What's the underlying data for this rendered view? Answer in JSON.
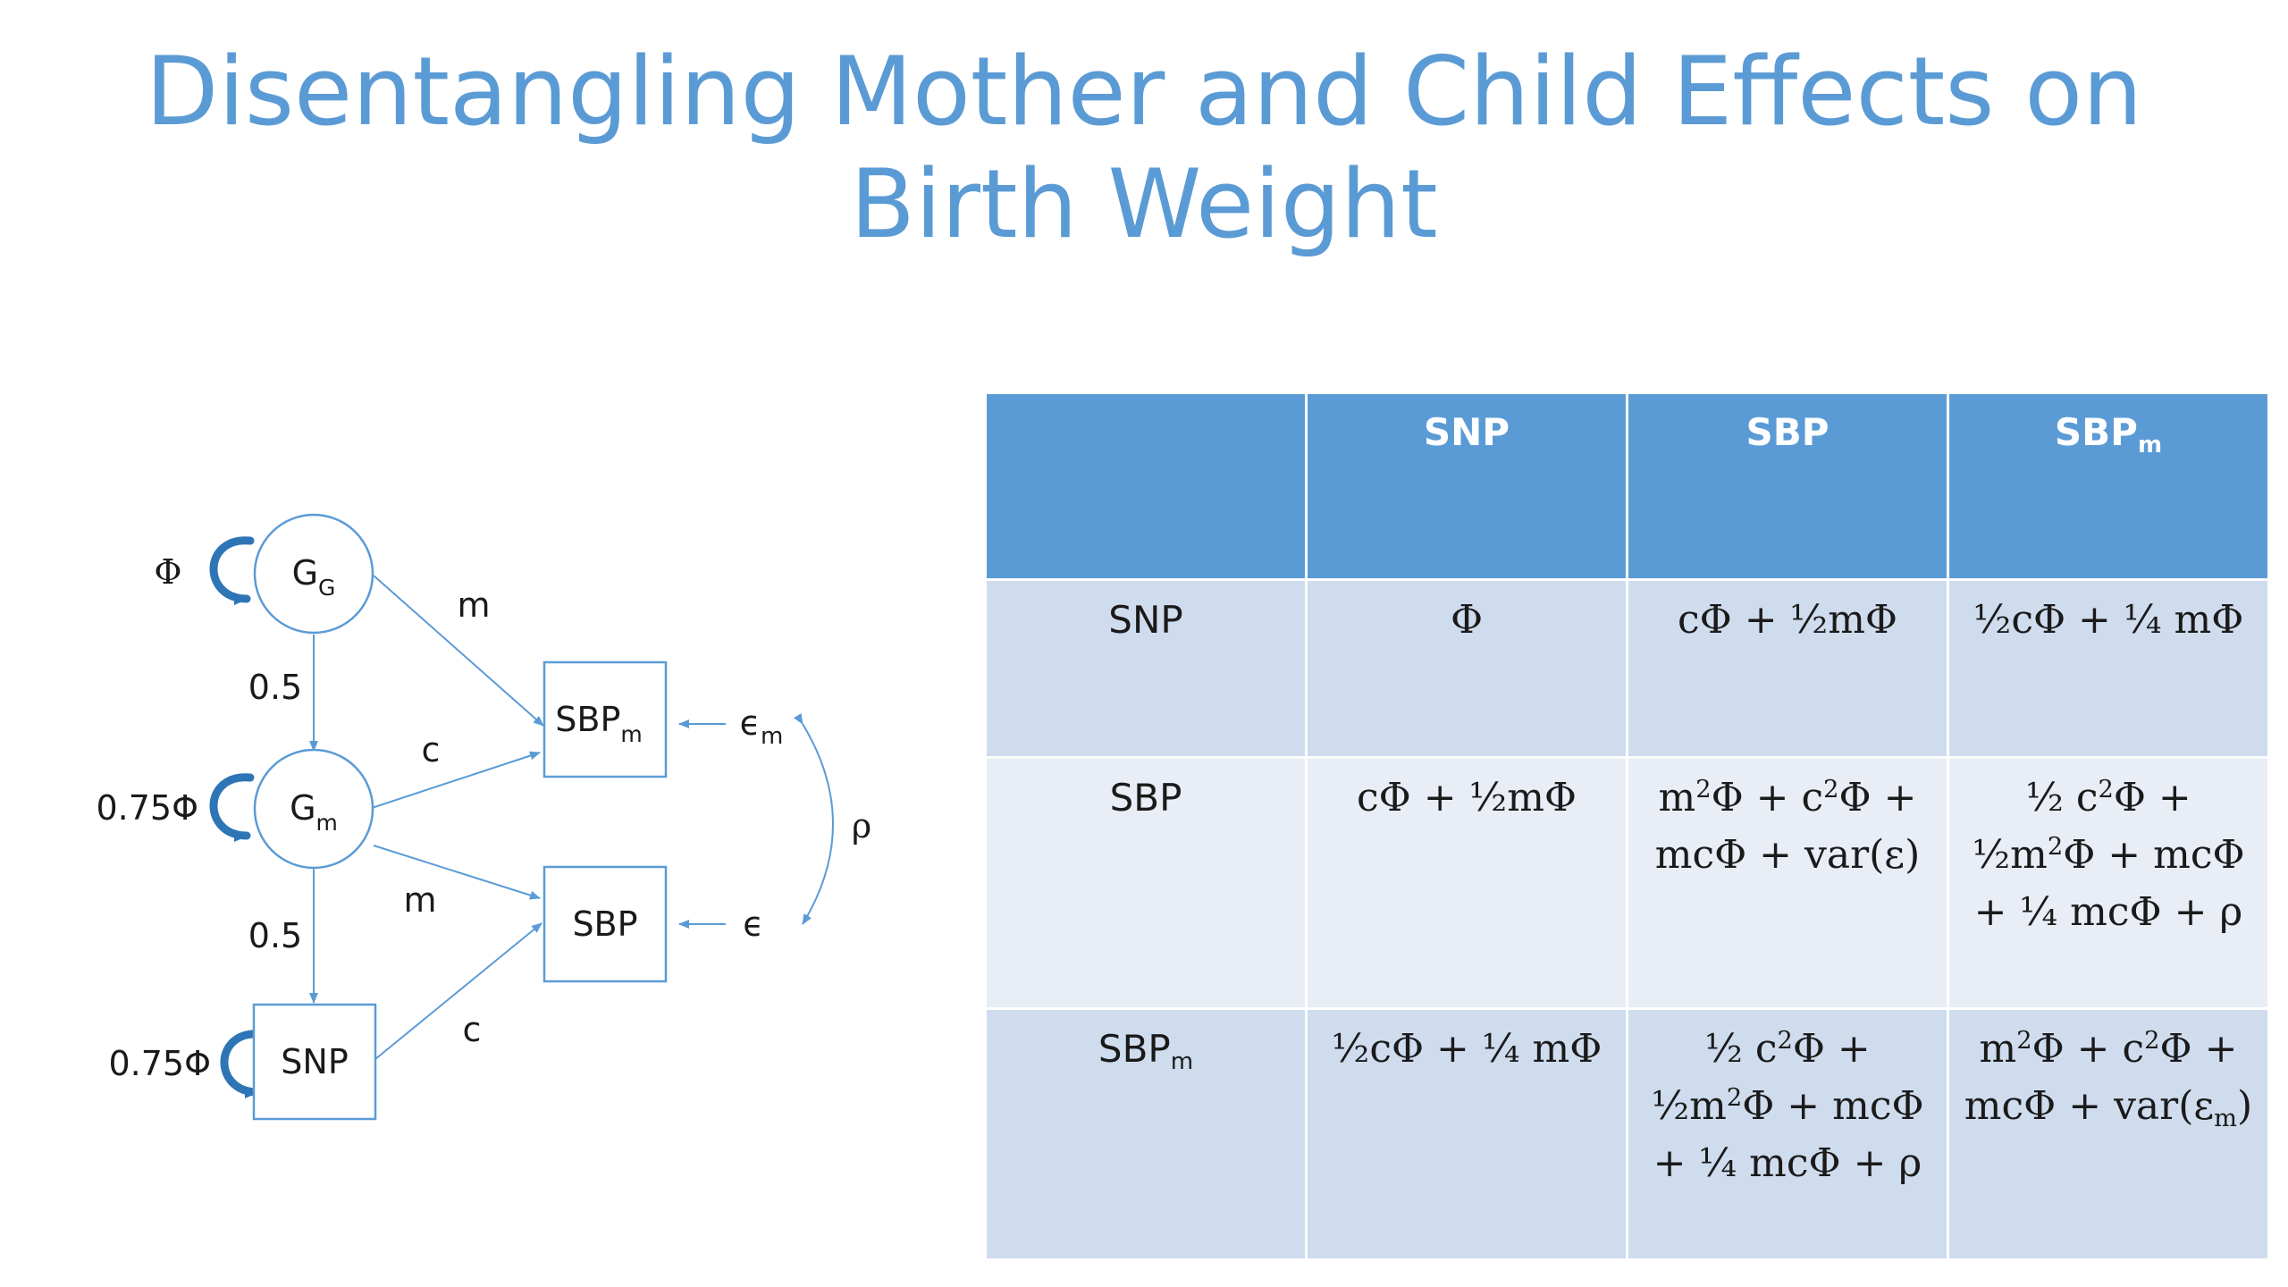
{
  "slide": {
    "title_line1": "Disentangling Mother and Child Effects on",
    "title_line2": "Birth Weight",
    "accent_color": "#5b9bd5"
  },
  "diagram": {
    "nodes": {
      "gg": {
        "main": "G",
        "sub": "G",
        "shape": "circle"
      },
      "gm": {
        "main": "G",
        "sub": "m",
        "shape": "circle"
      },
      "snp": {
        "main": "SNP",
        "shape": "square"
      },
      "sbpm": {
        "main": "SBP",
        "sub": "m",
        "shape": "square"
      },
      "sbp": {
        "main": "SBP",
        "shape": "square"
      }
    },
    "labels": {
      "phi": "Φ",
      "var_gm": "0.75Φ",
      "var_snp": "0.75Φ",
      "gg_gm": "0.5",
      "gm_snp": "0.5",
      "gg_sbpm": "m",
      "gm_sbpm": "c",
      "gm_sbp": "m",
      "snp_sbp": "c",
      "eps_m_main": "ϵ",
      "eps_m_sub": "m",
      "eps": "ϵ",
      "rho": "ρ"
    }
  },
  "table": {
    "headers": [
      {
        "main": "",
        "sub": ""
      },
      {
        "main": "SNP",
        "sub": ""
      },
      {
        "main": "SBP",
        "sub": ""
      },
      {
        "main": "SBP",
        "sub": "m"
      }
    ],
    "rows": [
      {
        "head": {
          "main": "SNP",
          "sub": ""
        },
        "cells": [
          [
            "Φ"
          ],
          [
            "cΦ + ½mΦ"
          ],
          [
            "½cΦ + ¼ mΦ"
          ]
        ]
      },
      {
        "head": {
          "main": "SBP",
          "sub": ""
        },
        "cells": [
          [
            "cΦ + ½mΦ"
          ],
          [
            "m<sup>2</sup>Φ + c<sup>2</sup>Φ +",
            "mcΦ + var(ε)"
          ],
          [
            "½ c<sup>2</sup>Φ +",
            "½m<sup>2</sup>Φ + mcΦ",
            "+ ¼ mcΦ + ρ"
          ]
        ]
      },
      {
        "head": {
          "main": "SBP",
          "sub": "m"
        },
        "cells": [
          [
            "½cΦ + ¼ mΦ"
          ],
          [
            "½ c<sup>2</sup>Φ +",
            "½m<sup>2</sup>Φ + mcΦ",
            "+ ¼ mcΦ + ρ"
          ],
          [
            "m<sup>2</sup>Φ + c<sup>2</sup>Φ +",
            "mcΦ + var(ε<sub>m</sub>)"
          ]
        ]
      }
    ]
  }
}
